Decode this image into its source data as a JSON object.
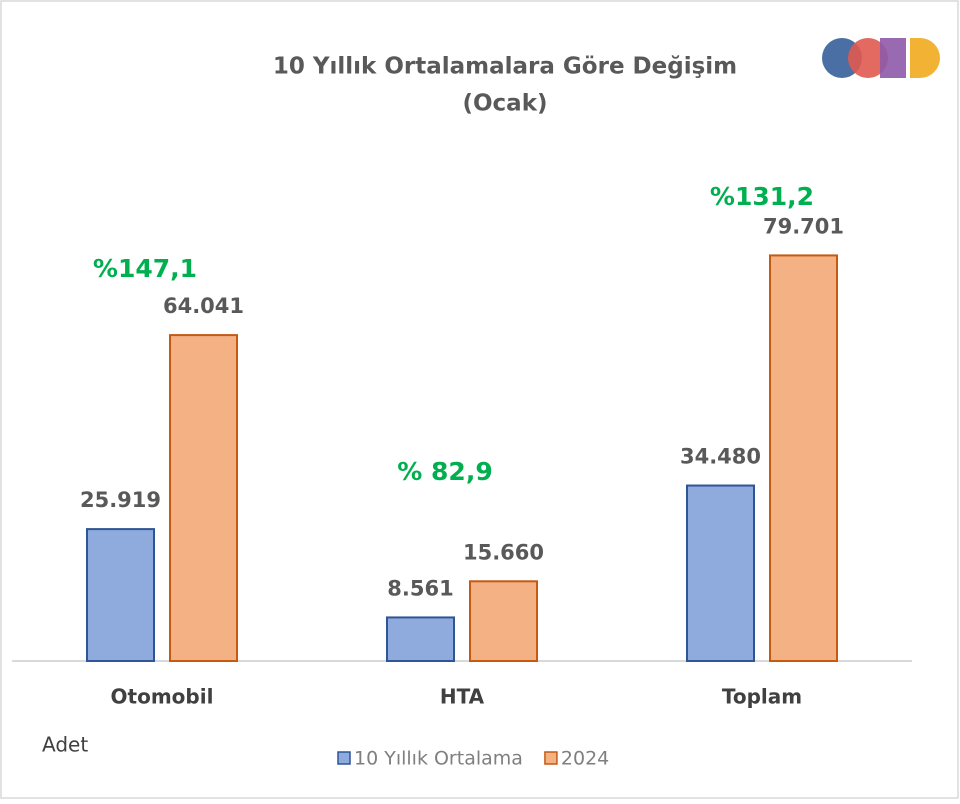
{
  "chart_data": {
    "type": "bar",
    "title": [
      "10 Yıllık Ortalamalara  Göre Değişim",
      "(Ocak)"
    ],
    "categories": [
      "Otomobil",
      "HTA",
      "Toplam"
    ],
    "series": [
      {
        "name": "10 Yıllık Ortalama",
        "color": "#8faadc",
        "values": [
          25919,
          8561,
          34480
        ],
        "value_labels": [
          "25.919",
          "8.561",
          "34.480"
        ]
      },
      {
        "name": "2024",
        "color": "#f4b183",
        "values": [
          64041,
          15660,
          79701
        ],
        "value_labels": [
          "64.041",
          "15.660",
          "79.701"
        ]
      }
    ],
    "annotations": [
      "%147,1",
      "% 82,9",
      "%131,2"
    ],
    "ylabel": "Adet",
    "ylim": [
      0,
      90000
    ],
    "legend": "bottom"
  }
}
